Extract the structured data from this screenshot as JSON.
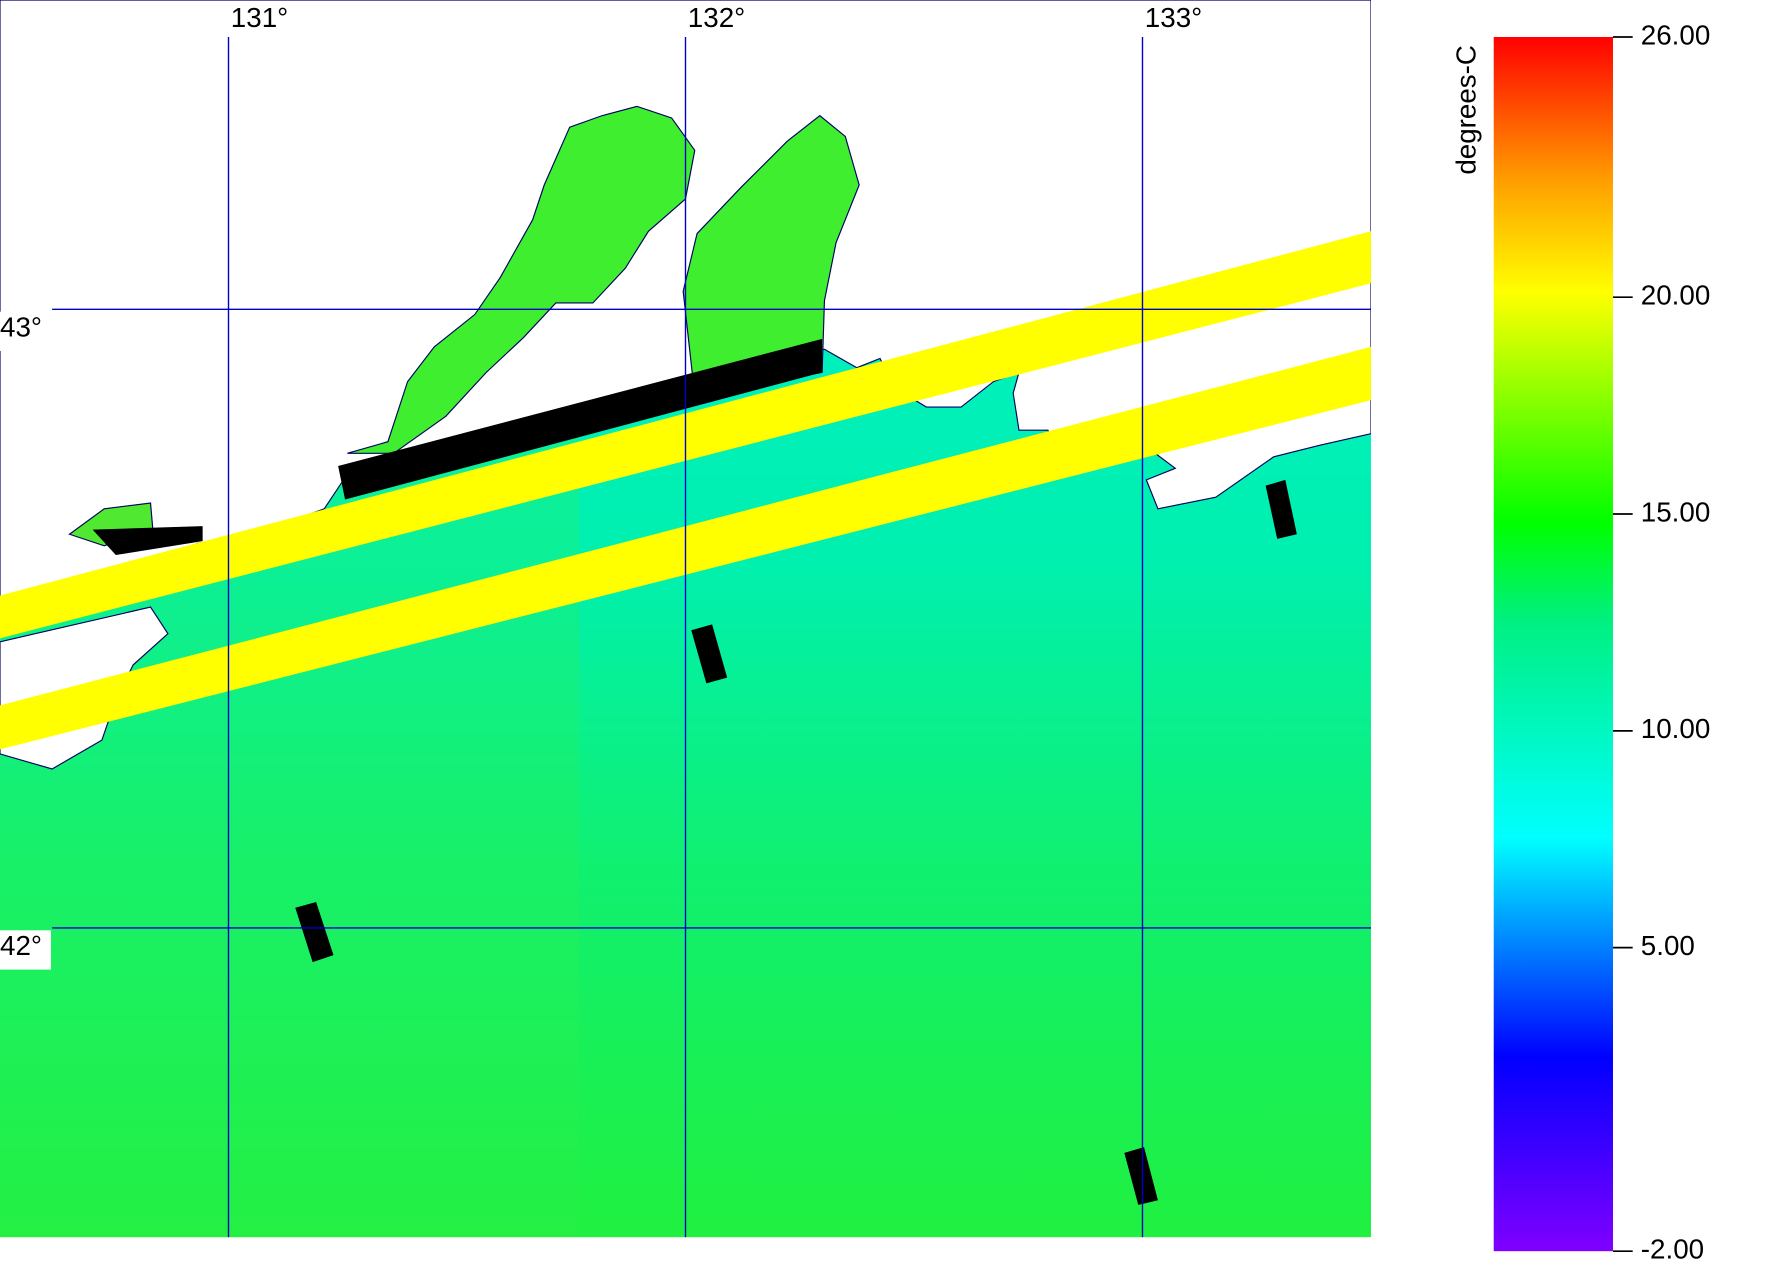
{
  "map": {
    "lonlim": [
      130.5,
      133.5
    ],
    "latlim": [
      41.5,
      43.5
    ],
    "lon_ticks": [
      {
        "value": 131,
        "label": "131°"
      },
      {
        "value": 132,
        "label": "132°"
      },
      {
        "value": 133,
        "label": "133°"
      }
    ],
    "lat_ticks": [
      {
        "value": 43,
        "label": "43°"
      },
      {
        "value": 42,
        "label": "42°"
      }
    ]
  },
  "colorbar": {
    "label": "degrees-C",
    "range": [
      -2,
      26
    ],
    "ticks": [
      {
        "value": 26,
        "label": "26.00"
      },
      {
        "value": 20,
        "label": "20.00"
      },
      {
        "value": 15,
        "label": "15.00"
      },
      {
        "value": 10,
        "label": "10.00"
      },
      {
        "value": 5,
        "label": "5.00"
      },
      {
        "value": -2,
        "label": "-2.00"
      }
    ]
  }
}
